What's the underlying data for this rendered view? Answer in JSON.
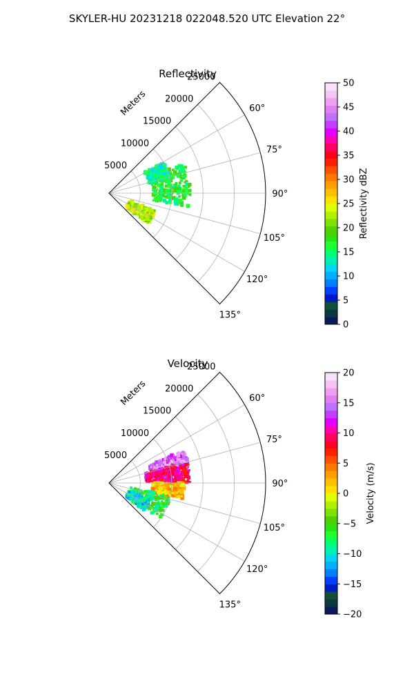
{
  "figure": {
    "suptitle": "SKYLER-HU  20231218  022048.520 UTC Elevation 22°"
  },
  "chart_data": [
    {
      "type": "heatmap",
      "projection": "polar-sector",
      "title": "Reflectivity",
      "radial_label": "Meters",
      "radial_ticks": [
        5000,
        10000,
        15000,
        20000,
        25000
      ],
      "r_max": 25000,
      "azimuth_range_deg": [
        45,
        135
      ],
      "azimuth_ticks": [
        "60°",
        "75°",
        "90°",
        "105°",
        "120°",
        "135°"
      ],
      "colorbar": {
        "label": "Reflectivity dBZ",
        "range": [
          0,
          50
        ],
        "ticks": [
          "0",
          "5",
          "10",
          "15",
          "20",
          "25",
          "30",
          "35",
          "40",
          "45",
          "50"
        ],
        "colors": [
          "#0a1a5a",
          "#0a3a40",
          "#10503a",
          "#0018c8",
          "#0040ff",
          "#0080ff",
          "#00b0ff",
          "#00d8f0",
          "#00f0b0",
          "#00ff70",
          "#20ff30",
          "#30e010",
          "#50d000",
          "#80e000",
          "#b0f000",
          "#e0ff00",
          "#ffe000",
          "#ffc000",
          "#ffa000",
          "#ff7800",
          "#ff5000",
          "#ff2000",
          "#ff0020",
          "#ff0060",
          "#ff00b0",
          "#e000ff",
          "#c040ff",
          "#c070ff",
          "#e080f0",
          "#f0a0f0",
          "#f4c4f4",
          "#f8e0f8"
        ]
      },
      "echo_regions": [
        {
          "az_deg": [
            68,
            100
          ],
          "r_m": [
            7000,
            13000
          ],
          "value": 16.5,
          "note": "main echo, green/cyan"
        },
        {
          "az_deg": [
            110,
            128
          ],
          "r_m": [
            3500,
            8000
          ],
          "value": 23,
          "note": "yellow band lower-left"
        },
        {
          "az_deg": [
            60,
            76
          ],
          "r_m": [
            6500,
            10000
          ],
          "value": 14,
          "note": "top echo, cyan/green"
        }
      ]
    },
    {
      "type": "heatmap",
      "projection": "polar-sector",
      "title": "Velocity",
      "radial_label": "Meters",
      "radial_ticks": [
        5000,
        10000,
        15000,
        20000,
        25000
      ],
      "r_max": 25000,
      "azimuth_range_deg": [
        45,
        135
      ],
      "azimuth_ticks": [
        "60°",
        "75°",
        "90°",
        "105°",
        "120°",
        "135°"
      ],
      "colorbar": {
        "label": "Velocity (m/s)",
        "range": [
          -20,
          20
        ],
        "ticks": [
          "−20",
          "−15",
          "−10",
          "−5",
          "0",
          "5",
          "10",
          "15",
          "20"
        ],
        "colors": [
          "#0a1a5a",
          "#0a3a40",
          "#10503a",
          "#0018c8",
          "#0040ff",
          "#0080ff",
          "#00b0ff",
          "#00d8f0",
          "#00f0b0",
          "#00ff70",
          "#20ff30",
          "#30e010",
          "#50d000",
          "#80e000",
          "#b0f000",
          "#e0ff00",
          "#ffe000",
          "#ffc000",
          "#ffa000",
          "#ff7800",
          "#ff5000",
          "#ff2000",
          "#ff0020",
          "#ff0060",
          "#ff00b0",
          "#e000ff",
          "#c040ff",
          "#c070ff",
          "#e080f0",
          "#f0a0f0",
          "#f4c4f4",
          "#f8e0f8"
        ]
      },
      "echo_regions": [
        {
          "az_deg": [
            66,
            80
          ],
          "r_m": [
            7000,
            13000
          ],
          "value": 15,
          "note": "magenta/violet top"
        },
        {
          "az_deg": [
            75,
            90
          ],
          "r_m": [
            6000,
            13000
          ],
          "value": 10,
          "note": "red core"
        },
        {
          "az_deg": [
            90,
            102
          ],
          "r_m": [
            7000,
            12000
          ],
          "value": 2,
          "note": "yellow/orange"
        },
        {
          "az_deg": [
            102,
            125
          ],
          "r_m": [
            3500,
            10000
          ],
          "value": -7,
          "note": "green lower-left"
        },
        {
          "az_deg": [
            112,
            128
          ],
          "r_m": [
            3500,
            7000
          ],
          "value": -10,
          "note": "cyan/green edge"
        }
      ]
    }
  ]
}
